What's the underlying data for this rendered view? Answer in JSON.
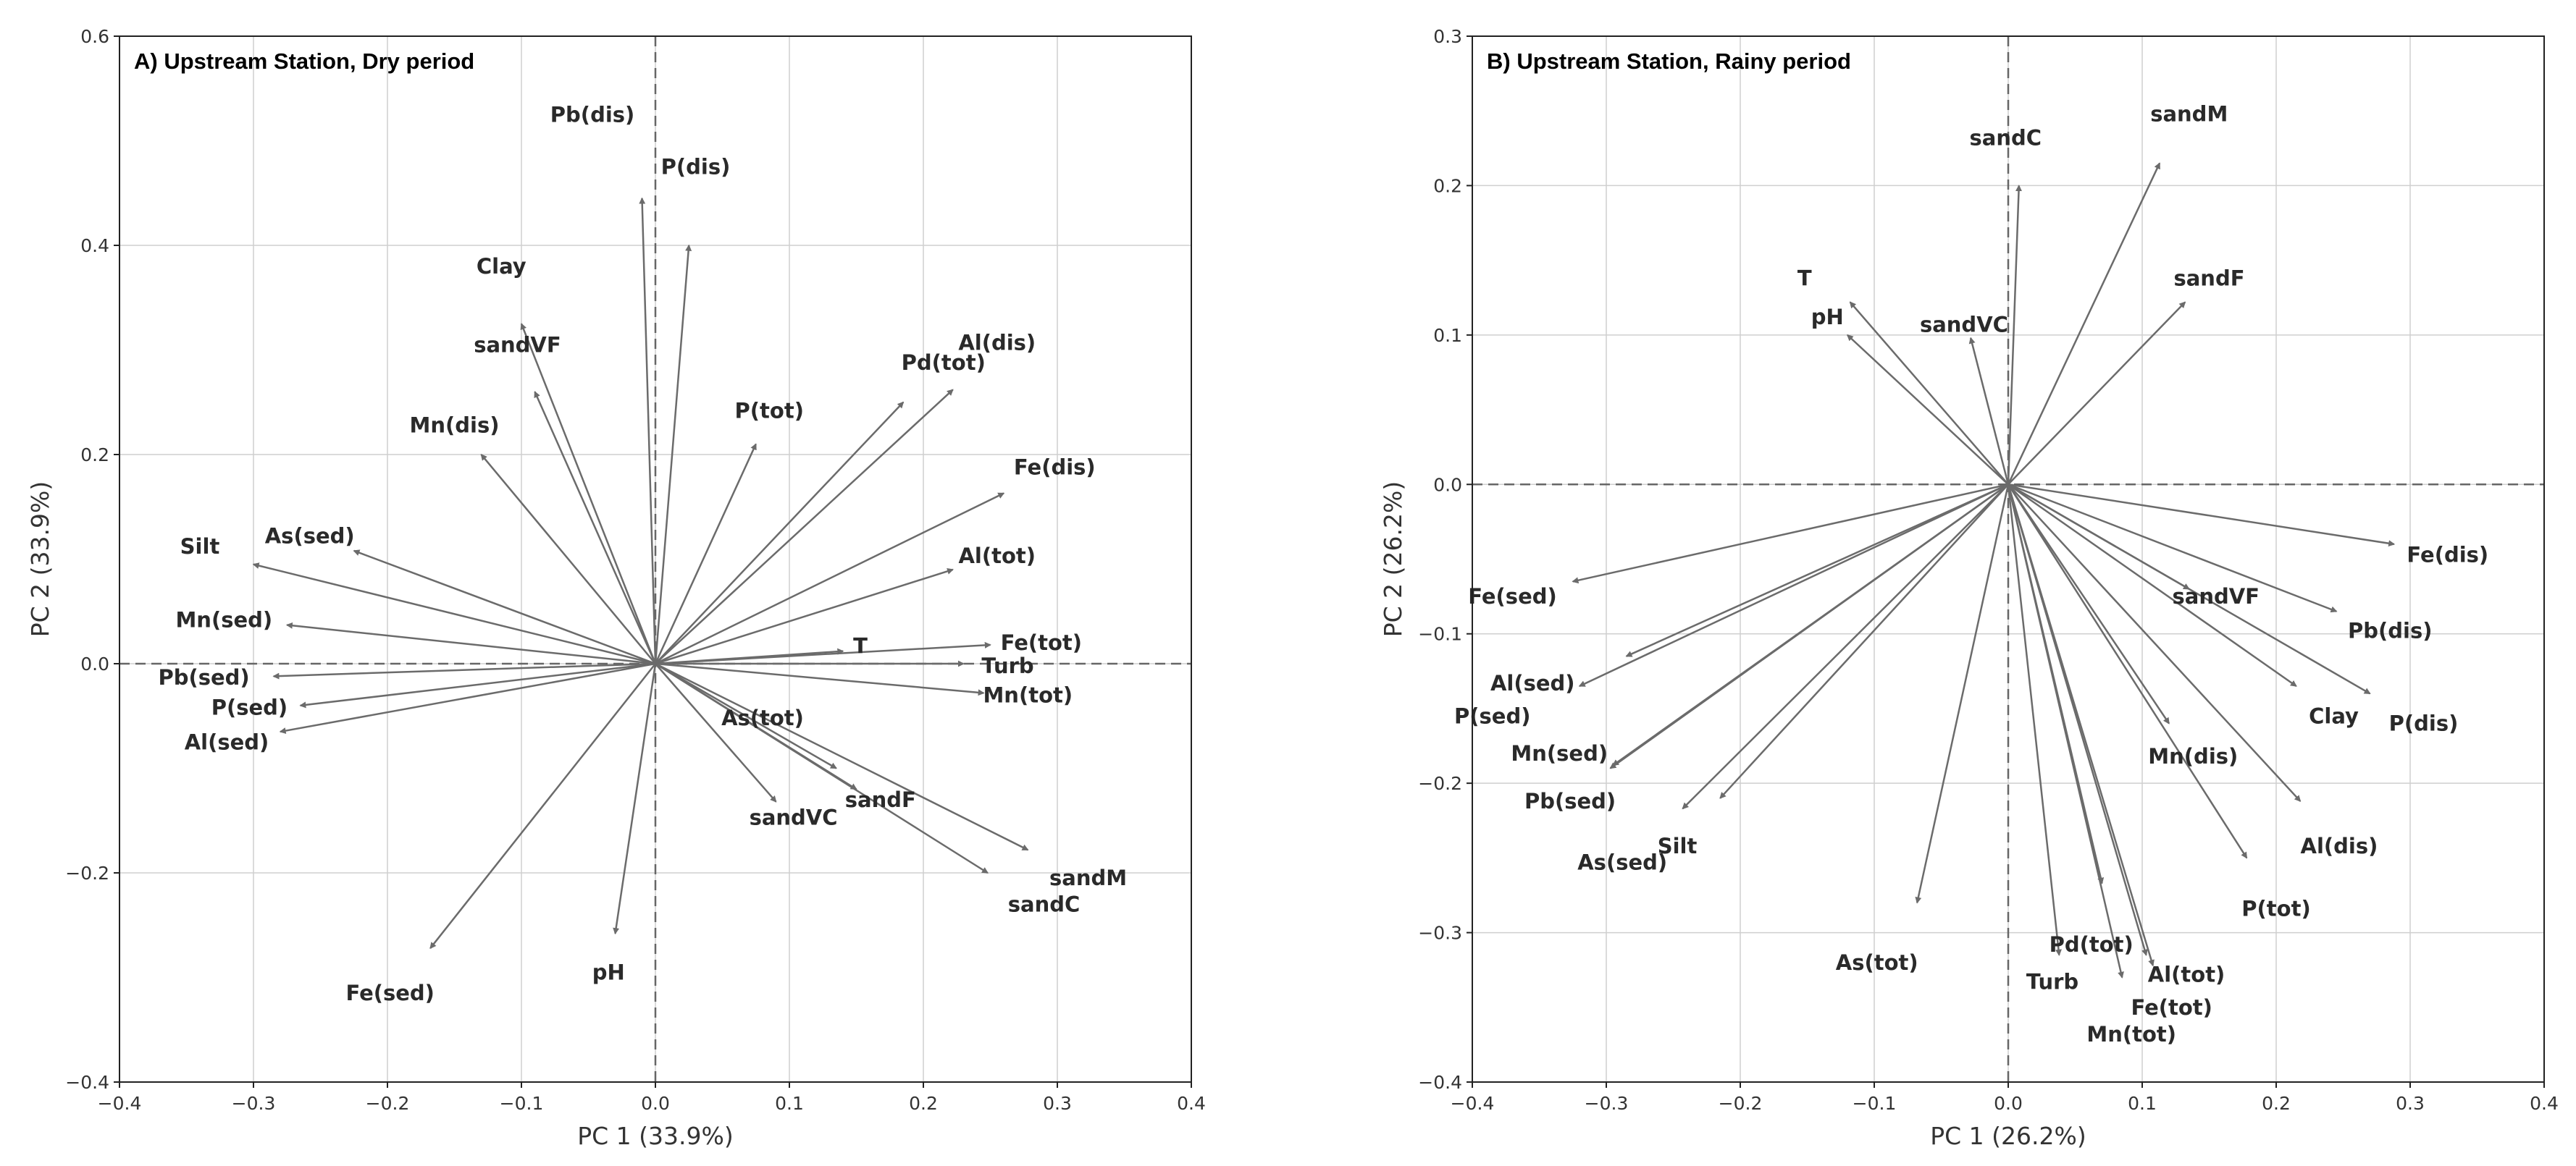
{
  "chart_data": [
    {
      "type": "scatter",
      "subtype": "biplot-vectors",
      "title": "A) Upstream Station, Dry period",
      "xlabel": "PC 1 (33.9%)",
      "ylabel": "PC 2 (33.9%)",
      "xlim": [
        -0.4,
        0.4
      ],
      "ylim": [
        -0.4,
        0.6
      ],
      "xticks": [
        "−0.4",
        "−0.3",
        "−0.2",
        "−0.1",
        "0.0",
        "0.1",
        "0.2",
        "0.3",
        "0.4"
      ],
      "yticks": [
        "−0.4",
        "−0.2",
        "0.0",
        "0.2",
        "0.4",
        "0.6"
      ],
      "grid": true,
      "arrow_color": "#6b6b6b",
      "vectors": [
        {
          "name": "Pb(dis)",
          "x": -0.01,
          "y": 0.445,
          "lx": -0.047,
          "ly": 0.525
        },
        {
          "name": "P(dis)",
          "x": 0.025,
          "y": 0.4,
          "lx": 0.03,
          "ly": 0.475
        },
        {
          "name": "Clay",
          "x": -0.1,
          "y": 0.325,
          "lx": -0.115,
          "ly": 0.38
        },
        {
          "name": "sandVF",
          "x": -0.09,
          "y": 0.26,
          "lx": -0.103,
          "ly": 0.305
        },
        {
          "name": "Mn(dis)",
          "x": -0.13,
          "y": 0.2,
          "lx": -0.15,
          "ly": 0.228
        },
        {
          "name": "P(tot)",
          "x": 0.075,
          "y": 0.21,
          "lx": 0.085,
          "ly": 0.242
        },
        {
          "name": "Pd(tot)",
          "x": 0.185,
          "y": 0.25,
          "lx": 0.215,
          "ly": 0.288
        },
        {
          "name": "Al(dis)",
          "x": 0.222,
          "y": 0.262,
          "lx": 0.255,
          "ly": 0.307
        },
        {
          "name": "Fe(dis)",
          "x": 0.26,
          "y": 0.163,
          "lx": 0.298,
          "ly": 0.188
        },
        {
          "name": "Al(tot)",
          "x": 0.222,
          "y": 0.09,
          "lx": 0.255,
          "ly": 0.103
        },
        {
          "name": "T",
          "x": 0.14,
          "y": 0.012,
          "lx": 0.153,
          "ly": 0.017
        },
        {
          "name": "Fe(tot)",
          "x": 0.25,
          "y": 0.018,
          "lx": 0.288,
          "ly": 0.02
        },
        {
          "name": "Turb",
          "x": 0.23,
          "y": 0.0,
          "lx": 0.263,
          "ly": -0.002
        },
        {
          "name": "Mn(tot)",
          "x": 0.245,
          "y": -0.028,
          "lx": 0.278,
          "ly": -0.03
        },
        {
          "name": "As(tot)",
          "x": 0.135,
          "y": -0.1,
          "lx": 0.08,
          "ly": -0.052
        },
        {
          "name": "sandVC",
          "x": 0.09,
          "y": -0.132,
          "lx": 0.103,
          "ly": -0.147
        },
        {
          "name": "sandF",
          "x": 0.15,
          "y": -0.12,
          "lx": 0.168,
          "ly": -0.13
        },
        {
          "name": "sandM",
          "x": 0.278,
          "y": -0.178,
          "lx": 0.323,
          "ly": -0.205
        },
        {
          "name": "sandC",
          "x": 0.248,
          "y": -0.2,
          "lx": 0.29,
          "ly": -0.23
        },
        {
          "name": "pH",
          "x": -0.03,
          "y": -0.258,
          "lx": -0.035,
          "ly": -0.295
        },
        {
          "name": "Fe(sed)",
          "x": -0.168,
          "y": -0.272,
          "lx": -0.198,
          "ly": -0.315
        },
        {
          "name": "Silt",
          "x": -0.3,
          "y": 0.095,
          "lx": -0.34,
          "ly": 0.112
        },
        {
          "name": "As(sed)",
          "x": -0.225,
          "y": 0.108,
          "lx": -0.258,
          "ly": 0.122
        },
        {
          "name": "Mn(sed)",
          "x": -0.275,
          "y": 0.037,
          "lx": -0.322,
          "ly": 0.042
        },
        {
          "name": "Pb(sed)",
          "x": -0.285,
          "y": -0.012,
          "lx": -0.337,
          "ly": -0.013
        },
        {
          "name": "P(sed)",
          "x": -0.265,
          "y": -0.04,
          "lx": -0.303,
          "ly": -0.042
        },
        {
          "name": "Al(sed)",
          "x": -0.28,
          "y": -0.065,
          "lx": -0.32,
          "ly": -0.075
        }
      ]
    },
    {
      "type": "scatter",
      "subtype": "biplot-vectors",
      "title": "B) Upstream Station, Rainy period",
      "xlabel": "PC 1 (26.2%)",
      "ylabel": "PC 2 (26.2%)",
      "xlim": [
        -0.4,
        0.4
      ],
      "ylim": [
        -0.4,
        0.3
      ],
      "xticks": [
        "−0.4",
        "−0.3",
        "−0.2",
        "−0.1",
        "0.0",
        "0.1",
        "0.2",
        "0.3",
        "0.4"
      ],
      "yticks": [
        "−0.4",
        "−0.3",
        "−0.2",
        "−0.1",
        "0.0",
        "0.1",
        "0.2",
        "0.3"
      ],
      "grid": true,
      "arrow_color": "#6b6b6b",
      "vectors": [
        {
          "name": "sandC",
          "x": 0.008,
          "y": 0.2,
          "lx": -0.002,
          "ly": 0.232
        },
        {
          "name": "sandM",
          "x": 0.113,
          "y": 0.215,
          "lx": 0.135,
          "ly": 0.248
        },
        {
          "name": "sandF",
          "x": 0.132,
          "y": 0.122,
          "lx": 0.15,
          "ly": 0.138
        },
        {
          "name": "T",
          "x": -0.118,
          "y": 0.122,
          "lx": -0.152,
          "ly": 0.138
        },
        {
          "name": "pH",
          "x": -0.12,
          "y": 0.1,
          "lx": -0.135,
          "ly": 0.112
        },
        {
          "name": "sandVC",
          "x": -0.028,
          "y": 0.098,
          "lx": -0.033,
          "ly": 0.107
        },
        {
          "name": "Fe(dis)",
          "x": 0.288,
          "y": -0.04,
          "lx": 0.328,
          "ly": -0.047
        },
        {
          "name": "sandVF",
          "x": 0.135,
          "y": -0.07,
          "lx": 0.155,
          "ly": -0.075
        },
        {
          "name": "Pb(dis)",
          "x": 0.245,
          "y": -0.085,
          "lx": 0.285,
          "ly": -0.098
        },
        {
          "name": "Clay",
          "x": 0.215,
          "y": -0.135,
          "lx": 0.243,
          "ly": -0.155
        },
        {
          "name": "P(dis)",
          "x": 0.27,
          "y": -0.14,
          "lx": 0.31,
          "ly": -0.16
        },
        {
          "name": "Mn(dis)",
          "x": 0.12,
          "y": -0.16,
          "lx": 0.138,
          "ly": -0.182
        },
        {
          "name": "Al(dis)",
          "x": 0.218,
          "y": -0.212,
          "lx": 0.247,
          "ly": -0.242
        },
        {
          "name": "P(tot)",
          "x": 0.178,
          "y": -0.25,
          "lx": 0.2,
          "ly": -0.284
        },
        {
          "name": "Pd(tot)",
          "x": 0.07,
          "y": -0.267,
          "lx": 0.062,
          "ly": -0.308
        },
        {
          "name": "Turb",
          "x": 0.038,
          "y": -0.315,
          "lx": 0.033,
          "ly": -0.333
        },
        {
          "name": "Mn(tot)",
          "x": 0.085,
          "y": -0.33,
          "lx": 0.092,
          "ly": -0.368
        },
        {
          "name": "Al(tot)",
          "x": 0.108,
          "y": -0.322,
          "lx": 0.133,
          "ly": -0.328
        },
        {
          "name": "Fe(tot)",
          "x": 0.103,
          "y": -0.315,
          "lx": 0.122,
          "ly": -0.35
        },
        {
          "name": "As(tot)",
          "x": -0.068,
          "y": -0.28,
          "lx": -0.098,
          "ly": -0.32
        },
        {
          "name": "Fe(sed)",
          "x": -0.325,
          "y": -0.065,
          "lx": -0.37,
          "ly": -0.075
        },
        {
          "name": "Al(sed)",
          "x": -0.32,
          "y": -0.135,
          "lx": -0.355,
          "ly": -0.133
        },
        {
          "name": "P(sed)",
          "x": -0.285,
          "y": -0.115,
          "lx": -0.385,
          "ly": -0.155
        },
        {
          "name": "Mn(sed)",
          "x": -0.297,
          "y": -0.19,
          "lx": -0.335,
          "ly": -0.18
        },
        {
          "name": "Pb(sed)",
          "x": -0.295,
          "y": -0.188,
          "lx": -0.327,
          "ly": -0.212
        },
        {
          "name": "Silt",
          "x": -0.243,
          "y": -0.217,
          "lx": -0.247,
          "ly": -0.242
        },
        {
          "name": "As(sed)",
          "x": -0.215,
          "y": -0.21,
          "lx": -0.288,
          "ly": -0.253
        }
      ]
    }
  ]
}
